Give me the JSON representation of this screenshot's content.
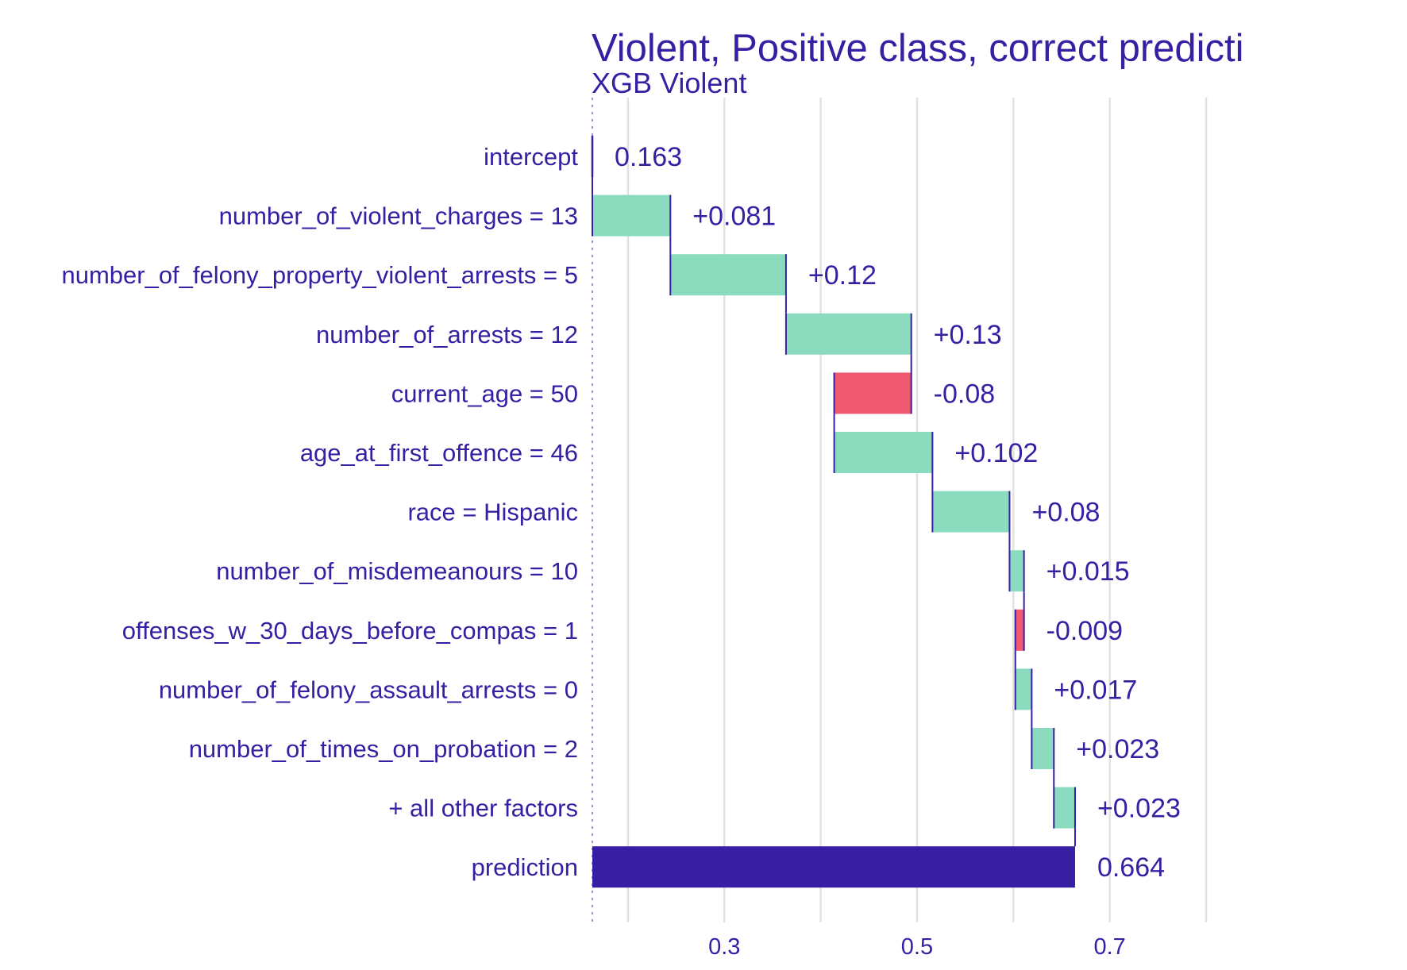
{
  "chart_data": {
    "type": "waterfall",
    "title": "Violent, Positive class, correct predicti",
    "subtitle": "XGB Violent",
    "xlim": [
      0.163,
      0.8
    ],
    "xticks": [
      0.3,
      0.5,
      0.7
    ],
    "xtick_labels": [
      "0.3",
      "0.5",
      "0.7"
    ],
    "minor_gridlines": [
      0.2,
      0.4,
      0.6,
      0.8
    ],
    "grid": true,
    "colors": {
      "positive": "#8bdcbe",
      "negative": "#f05a71",
      "prediction": "#371ea3",
      "text": "#371ea3"
    },
    "rows": [
      {
        "label": "intercept",
        "kind": "intercept",
        "start": 0.163,
        "end": 0.163,
        "value_label": "0.163"
      },
      {
        "label": "number_of_violent_charges = 13",
        "kind": "positive",
        "start": 0.163,
        "end": 0.244,
        "value_label": "+0.081"
      },
      {
        "label": "number_of_felony_property_violent_arrests = 5",
        "kind": "positive",
        "start": 0.244,
        "end": 0.364,
        "value_label": "+0.12"
      },
      {
        "label": "number_of_arrests = 12",
        "kind": "positive",
        "start": 0.364,
        "end": 0.494,
        "value_label": "+0.13"
      },
      {
        "label": "current_age = 50",
        "kind": "negative",
        "start": 0.494,
        "end": 0.414,
        "value_label": "-0.08"
      },
      {
        "label": "age_at_first_offence = 46",
        "kind": "positive",
        "start": 0.414,
        "end": 0.516,
        "value_label": "+0.102"
      },
      {
        "label": "race = Hispanic",
        "kind": "positive",
        "start": 0.516,
        "end": 0.596,
        "value_label": "+0.08"
      },
      {
        "label": "number_of_misdemeanours = 10",
        "kind": "positive",
        "start": 0.596,
        "end": 0.611,
        "value_label": "+0.015"
      },
      {
        "label": "offenses_w_30_days_before_compas = 1",
        "kind": "negative",
        "start": 0.611,
        "end": 0.602,
        "value_label": "-0.009"
      },
      {
        "label": "number_of_felony_assault_arrests = 0",
        "kind": "positive",
        "start": 0.602,
        "end": 0.619,
        "value_label": "+0.017"
      },
      {
        "label": "number_of_times_on_probation = 2",
        "kind": "positive",
        "start": 0.619,
        "end": 0.642,
        "value_label": "+0.023"
      },
      {
        "label": "+ all other factors",
        "kind": "positive",
        "start": 0.642,
        "end": 0.664,
        "value_label": "+0.023"
      },
      {
        "label": "prediction",
        "kind": "prediction",
        "start": 0.163,
        "end": 0.664,
        "value_label": "0.664"
      }
    ]
  }
}
